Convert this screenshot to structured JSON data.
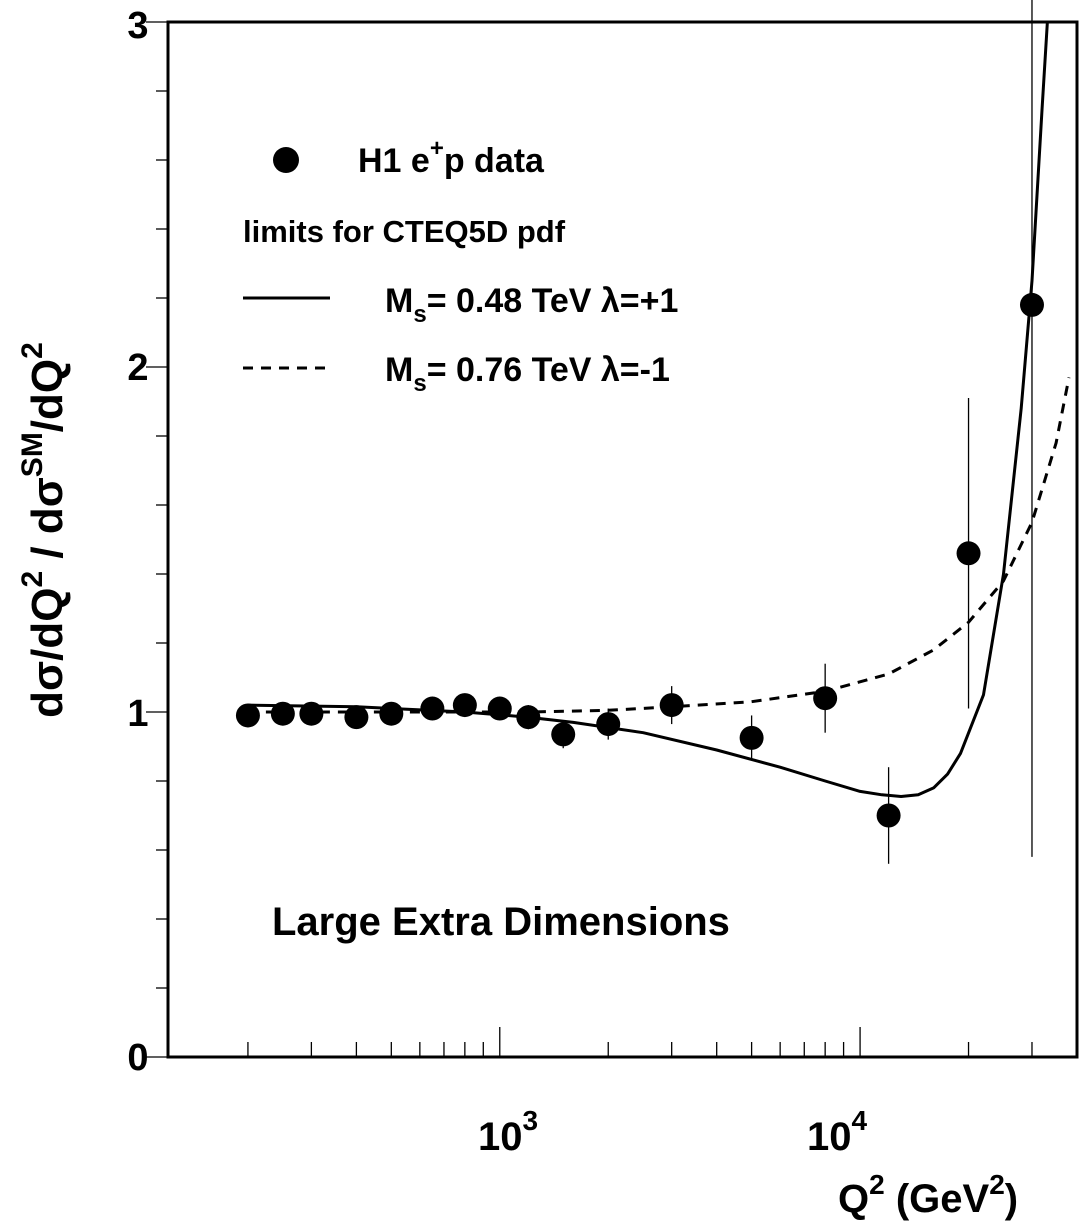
{
  "chart_data": {
    "type": "scatter",
    "title": "",
    "ylabel": "dσ/dQ² / dσ^SM/dQ²",
    "xlabel": "Q² (GeV²)",
    "xscale": "log",
    "xlim": [
      120,
      40000
    ],
    "ylim": [
      0,
      3
    ],
    "x_tick_labels": [
      {
        "value": 1000,
        "mantissa": "10",
        "exp": "3"
      },
      {
        "value": 10000,
        "mantissa": "10",
        "exp": "4"
      }
    ],
    "y_tick_labels": [
      "0",
      "1",
      "2",
      "3"
    ],
    "annotation": "Large Extra Dimensions",
    "legend": {
      "position": "top-left",
      "data_label": "H1 e⁺p data",
      "header": "limits for CTEQ5D pdf",
      "solid_label": "Mₛ= 0.48 TeV  λ=+1",
      "dashed_label": "Mₛ= 0.76 TeV  λ=-1"
    },
    "series": [
      {
        "name": "H1 e⁺p data",
        "style": "markers",
        "points": [
          {
            "x": 200,
            "y": 0.99,
            "err": 0.03
          },
          {
            "x": 250,
            "y": 0.995,
            "err": 0.03
          },
          {
            "x": 300,
            "y": 0.995,
            "err": 0.03
          },
          {
            "x": 400,
            "y": 0.985,
            "err": 0.03
          },
          {
            "x": 500,
            "y": 0.995,
            "err": 0.03
          },
          {
            "x": 650,
            "y": 1.01,
            "err": 0.03
          },
          {
            "x": 800,
            "y": 1.02,
            "err": 0.03
          },
          {
            "x": 1000,
            "y": 1.01,
            "err": 0.03
          },
          {
            "x": 1200,
            "y": 0.985,
            "err": 0.035
          },
          {
            "x": 1500,
            "y": 0.935,
            "err": 0.04
          },
          {
            "x": 2000,
            "y": 0.965,
            "err": 0.045
          },
          {
            "x": 3000,
            "y": 1.02,
            "err": 0.055
          },
          {
            "x": 5000,
            "y": 0.925,
            "err": 0.065
          },
          {
            "x": 8000,
            "y": 1.04,
            "err": 0.1
          },
          {
            "x": 12000,
            "y": 0.7,
            "err": 0.14
          },
          {
            "x": 20000,
            "y": 1.46,
            "err": 0.45
          },
          {
            "x": 30000,
            "y": 2.18,
            "err": 1.6
          }
        ]
      },
      {
        "name": "Mₛ= 0.48 TeV  λ=+1",
        "style": "solid",
        "x": [
          200,
          400,
          800,
          1200,
          1600,
          2500,
          4000,
          6000,
          8000,
          10000,
          11500,
          13000,
          14500,
          16000,
          17500,
          19000,
          22000,
          25000,
          28000,
          30000,
          32000,
          34000
        ],
        "y": [
          1.02,
          1.015,
          1.0,
          0.985,
          0.97,
          0.94,
          0.89,
          0.84,
          0.8,
          0.77,
          0.76,
          0.755,
          0.76,
          0.78,
          0.82,
          0.88,
          1.05,
          1.4,
          1.88,
          2.25,
          2.75,
          3.2
        ]
      },
      {
        "name": "Mₛ= 0.76 TeV  λ=-1",
        "style": "dashed",
        "x": [
          200,
          400,
          800,
          1200,
          2000,
          3000,
          5000,
          8000,
          12000,
          16000,
          20000,
          25000,
          30000,
          35000,
          38000
        ],
        "y": [
          1.0,
          1.0,
          1.0,
          1.0,
          1.005,
          1.015,
          1.03,
          1.06,
          1.11,
          1.18,
          1.26,
          1.38,
          1.55,
          1.78,
          1.97
        ]
      }
    ]
  }
}
